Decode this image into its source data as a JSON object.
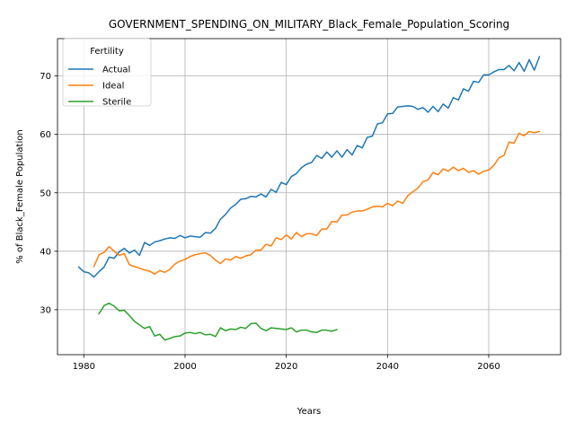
{
  "chart_data": {
    "type": "line",
    "title": "GOVERNMENT_SPENDING_ON_MILITARY_Black_Female_Population_Scoring",
    "xlabel": "Years",
    "ylabel": "% of Black_Female Population",
    "xlim": [
      1974.8,
      2074.2
    ],
    "ylim": [
      22.3,
      76.4
    ],
    "xticks": [
      1980,
      2000,
      2020,
      2040,
      2060
    ],
    "yticks": [
      30,
      40,
      50,
      60,
      70
    ],
    "grid": true,
    "legend": {
      "title": "Fertility",
      "position": "top-left"
    },
    "series": [
      {
        "name": "Actual",
        "color": "#1f77b4",
        "x": [
          1979,
          1980,
          1981,
          1982,
          1983,
          1984,
          1985,
          1986,
          1987,
          1988,
          1989,
          1990,
          1991,
          1992,
          1993,
          1994,
          1995,
          1996,
          1997,
          1998,
          1999,
          2000,
          2001,
          2002,
          2003,
          2004,
          2005,
          2006,
          2007,
          2008,
          2009,
          2010,
          2011,
          2012,
          2013,
          2014,
          2015,
          2016,
          2017,
          2018,
          2019,
          2020,
          2021,
          2022,
          2023,
          2024,
          2025,
          2026,
          2027,
          2028,
          2029,
          2030,
          2031,
          2032,
          2033,
          2034,
          2035,
          2036,
          2037,
          2038,
          2039,
          2040,
          2041,
          2042,
          2043,
          2044,
          2045,
          2046,
          2047,
          2048,
          2049,
          2050,
          2051,
          2052,
          2053,
          2054,
          2055,
          2056,
          2057,
          2058,
          2059,
          2060,
          2061,
          2062,
          2063,
          2064,
          2065,
          2066,
          2067,
          2068,
          2069,
          2070
        ],
        "values": [
          37.3,
          36.5,
          36.3,
          35.6,
          36.5,
          37.3,
          39.0,
          38.8,
          39.9,
          40.5,
          39.7,
          40.2,
          39.3,
          41.5,
          41.0,
          41.6,
          41.8,
          42.1,
          42.3,
          42.2,
          42.7,
          42.3,
          42.6,
          42.5,
          42.4,
          43.2,
          43.1,
          43.9,
          45.5,
          46.3,
          47.4,
          48.0,
          48.9,
          49.0,
          49.4,
          49.3,
          49.8,
          49.3,
          50.6,
          50.1,
          51.8,
          51.4,
          52.8,
          53.3,
          54.3,
          54.9,
          55.2,
          56.4,
          55.9,
          57.0,
          56.1,
          57.2,
          56.1,
          57.4,
          56.5,
          58.1,
          57.7,
          59.5,
          59.7,
          61.8,
          62.0,
          63.5,
          63.6,
          64.7,
          64.8,
          64.9,
          64.8,
          64.3,
          64.6,
          63.8,
          64.8,
          63.9,
          65.2,
          64.5,
          66.3,
          65.9,
          67.8,
          67.4,
          69.1,
          68.9,
          70.2,
          70.2,
          70.7,
          71.1,
          71.1,
          71.8,
          70.9,
          72.3,
          70.8,
          72.8,
          71.0,
          73.3
        ]
      },
      {
        "name": "Ideal",
        "color": "#ff7f0e",
        "x": [
          1982,
          1983,
          1984,
          1985,
          1986,
          1987,
          1988,
          1989,
          1990,
          1991,
          1992,
          1993,
          1994,
          1995,
          1996,
          1997,
          1998,
          1999,
          2000,
          2001,
          2002,
          2003,
          2004,
          2005,
          2006,
          2007,
          2008,
          2009,
          2010,
          2011,
          2012,
          2013,
          2014,
          2015,
          2016,
          2017,
          2018,
          2019,
          2020,
          2021,
          2022,
          2023,
          2024,
          2025,
          2026,
          2027,
          2028,
          2029,
          2030,
          2031,
          2032,
          2033,
          2034,
          2035,
          2036,
          2037,
          2038,
          2039,
          2040,
          2041,
          2042,
          2043,
          2044,
          2045,
          2046,
          2047,
          2048,
          2049,
          2050,
          2051,
          2052,
          2053,
          2054,
          2055,
          2056,
          2057,
          2058,
          2059,
          2060,
          2061,
          2062,
          2063,
          2064,
          2065,
          2066,
          2067,
          2068,
          2069,
          2070
        ],
        "values": [
          37.4,
          39.4,
          39.8,
          40.8,
          40.0,
          39.3,
          39.6,
          37.7,
          37.4,
          37.1,
          36.8,
          36.6,
          36.1,
          36.7,
          36.4,
          36.9,
          37.8,
          38.3,
          38.6,
          39.1,
          39.4,
          39.6,
          39.7,
          39.3,
          38.5,
          37.9,
          38.7,
          38.5,
          39.1,
          38.8,
          39.2,
          39.4,
          40.2,
          40.2,
          41.2,
          40.9,
          42.3,
          42.0,
          42.8,
          42.1,
          43.2,
          42.5,
          43.0,
          43.0,
          42.7,
          43.8,
          43.8,
          45.1,
          45.0,
          46.2,
          46.2,
          46.7,
          46.9,
          46.9,
          47.2,
          47.6,
          47.7,
          47.6,
          48.2,
          47.8,
          48.6,
          48.2,
          49.5,
          50.2,
          50.8,
          51.9,
          52.2,
          53.5,
          53.1,
          54.1,
          53.7,
          54.4,
          53.8,
          54.2,
          53.5,
          53.8,
          53.2,
          53.7,
          53.9,
          54.7,
          56.0,
          56.4,
          58.7,
          58.5,
          60.2,
          59.8,
          60.5,
          60.3,
          60.5
        ]
      },
      {
        "name": "Sterile",
        "color": "#2ca02c",
        "x": [
          1983,
          1984,
          1985,
          1986,
          1987,
          1988,
          1989,
          1990,
          1991,
          1992,
          1993,
          1994,
          1995,
          1996,
          1997,
          1998,
          1999,
          2000,
          2001,
          2002,
          2003,
          2004,
          2005,
          2006,
          2007,
          2008,
          2009,
          2010,
          2011,
          2012,
          2013,
          2014,
          2015,
          2016,
          2017,
          2018,
          2019,
          2020,
          2021,
          2022,
          2023,
          2024,
          2025,
          2026,
          2027,
          2028,
          2029,
          2030
        ],
        "values": [
          29.3,
          30.7,
          31.1,
          30.6,
          29.8,
          29.9,
          29.0,
          28.0,
          27.4,
          26.8,
          27.1,
          25.5,
          25.8,
          24.8,
          25.1,
          25.4,
          25.5,
          26.0,
          26.1,
          25.9,
          26.1,
          25.7,
          25.8,
          25.4,
          26.9,
          26.4,
          26.7,
          26.6,
          27.0,
          26.8,
          27.6,
          27.7,
          26.8,
          26.4,
          26.9,
          26.8,
          26.7,
          26.6,
          26.9,
          26.2,
          26.5,
          26.5,
          26.2,
          26.1,
          26.5,
          26.5,
          26.3,
          26.6
        ]
      }
    ]
  }
}
